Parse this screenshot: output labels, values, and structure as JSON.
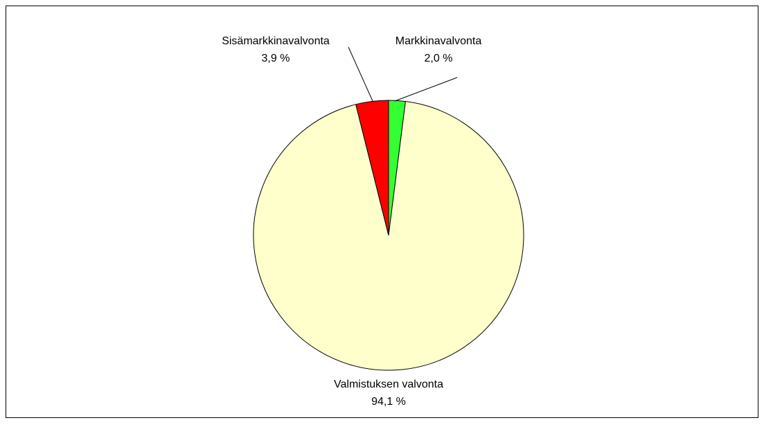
{
  "chart_data": {
    "type": "pie",
    "categories": [
      "Markkinavalvonta",
      "Valmistuksen valvonta",
      "Sisämarkkinavalvonta"
    ],
    "values": [
      2.0,
      94.1,
      3.9
    ],
    "value_labels": [
      "2,0 %",
      "94,1 %",
      "3,9 %"
    ],
    "colors": [
      "#33ff33",
      "#ffffcc",
      "#ff0000"
    ]
  }
}
